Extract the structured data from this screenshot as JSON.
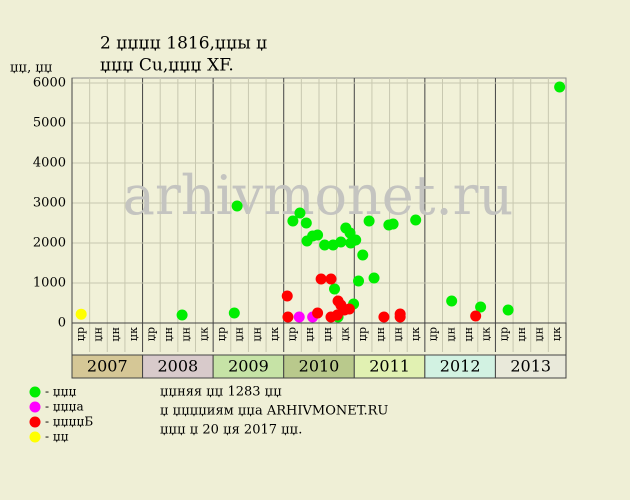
{
  "chart_data": {
    "type": "scatter",
    "title": "2 џџџџ 1816,џџы џ",
    "subtitle": "џџџ Cu,џџџ XF.",
    "y_label": "џџ, џџ",
    "watermark": "arhivmonet.ru",
    "xlim": [
      2007,
      2014
    ],
    "ylim": [
      0,
      6000
    ],
    "yticks": [
      0,
      1000,
      2000,
      3000,
      4000,
      5000,
      6000
    ],
    "grid": true,
    "quarters": [
      "џр",
      "џн",
      "џн",
      "џк"
    ],
    "years": [
      "2007",
      "2008",
      "2009",
      "2010",
      "2011",
      "2012",
      "2013"
    ],
    "year_colors": [
      "#d5c796",
      "#d8cacb",
      "#c6e3a6",
      "#b9c98c",
      "#e1f1b2",
      "#d2f2e2",
      "#e9e9da"
    ],
    "series": [
      {
        "name": "- џџџ",
        "color": "#00ee00",
        "x": [
          2008.56,
          2009.34,
          2009.3,
          2010.13,
          2010.23,
          2010.32,
          2010.33,
          2010.41,
          2010.48,
          2010.58,
          2010.7,
          2010.72,
          2010.77,
          2010.81,
          2010.88,
          2010.94,
          2010.95,
          2011.02,
          2010.99,
          2011.06,
          2011.12,
          2011.21,
          2011.28,
          2011.49,
          2011.55,
          2011.87,
          2012.38,
          2012.79,
          2013.18,
          2013.91
        ],
        "values": [
          200,
          2925,
          250,
          2550,
          2750,
          2500,
          2050,
          2175,
          2200,
          1950,
          1950,
          850,
          150,
          2025,
          2375,
          2250,
          2000,
          2075,
          475,
          1050,
          1700,
          2550,
          1125,
          2450,
          2475,
          2575,
          550,
          400,
          325,
          5900
        ]
      },
      {
        "name": "- џџџа",
        "color": "#ff00ff",
        "x": [
          2010.22,
          2010.41
        ],
        "values": [
          150,
          150
        ]
      },
      {
        "name": "- џџџџБ",
        "color": "#ff0000",
        "x": [
          2010.05,
          2010.06,
          2010.48,
          2010.53,
          2010.67,
          2010.67,
          2010.76,
          2010.77,
          2010.81,
          2010.86,
          2010.93,
          2011.42,
          2011.65,
          2011.65,
          2012.72
        ],
        "values": [
          675,
          150,
          250,
          1100,
          1100,
          150,
          200,
          550,
          450,
          325,
          350,
          150,
          150,
          225,
          175
        ]
      },
      {
        "name": "- џџ",
        "color": "#ffff00",
        "x": [
          2007.13
        ],
        "values": [
          220
        ]
      }
    ],
    "notes": [
      "џџняя џџ 1283 џџ",
      "џ џџџџиям џџа ARHIVMONET.RU",
      "џџџ џ 20 џя 2017 џџ."
    ]
  }
}
